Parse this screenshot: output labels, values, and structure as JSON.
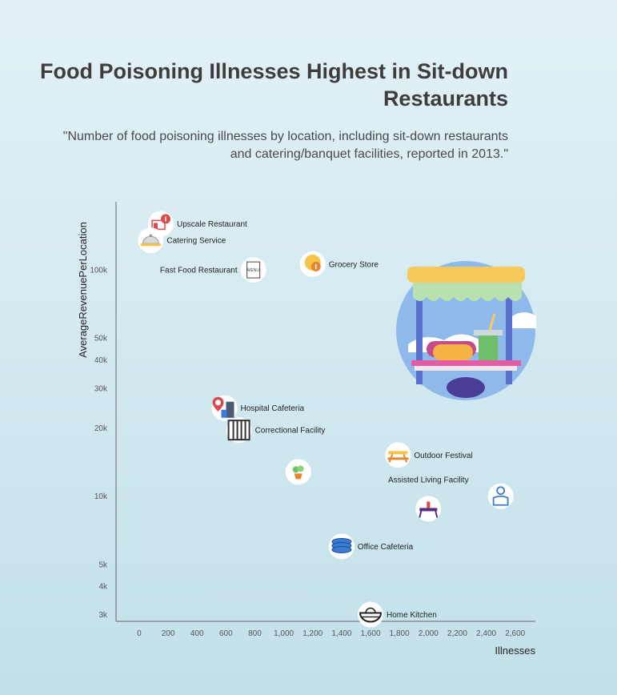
{
  "title": "Food Poisoning Illnesses Highest in Sit-down Restaurants",
  "subtitle": "\"Number of food poisoning illnesses by location, including sit-down restaurants and catering/banquet facilities, reported in 2013.\"",
  "chart_data": {
    "type": "scatter",
    "xlabel": "Illnesses",
    "ylabel": "AverageRevenuePerLocation",
    "xlim": [
      -160,
      2740
    ],
    "ylim": [
      2800,
      200000
    ],
    "yscale": "log",
    "grid": false,
    "x_ticks": [
      0,
      200,
      400,
      600,
      800,
      1000,
      1200,
      1400,
      1600,
      1800,
      2000,
      2200,
      2400,
      2600
    ],
    "x_tick_labels": [
      "0",
      "200",
      "400",
      "600",
      "800",
      "1,000",
      "1,200",
      "1,400",
      "1,600",
      "1,800",
      "2,000",
      "2,200",
      "2,400",
      "2,600"
    ],
    "y_ticks": [
      3000,
      4000,
      5000,
      10000,
      20000,
      30000,
      40000,
      50000,
      100000
    ],
    "y_tick_labels": [
      "3k",
      "4k",
      "5k",
      "10k",
      "20k",
      "30k",
      "40k",
      "50k",
      "100k"
    ],
    "points": [
      {
        "label": "Upscale Restaurant",
        "x": 150,
        "y": 160000,
        "icon": "restaurant-icon",
        "label_side": "right"
      },
      {
        "label": "Catering Service",
        "x": 80,
        "y": 135000,
        "icon": "serving-cloche-icon",
        "label_side": "right"
      },
      {
        "label": "Fast Food Restaurant",
        "x": 790,
        "y": 100000,
        "icon": "menu-icon",
        "label_side": "left"
      },
      {
        "label": "Grocery Store",
        "x": 1200,
        "y": 106000,
        "icon": "grocery-pin-icon",
        "label_side": "right"
      },
      {
        "label": "Hospital Cafeteria",
        "x": 590,
        "y": 24500,
        "icon": "hospital-icon",
        "label_side": "right"
      },
      {
        "label": "Correctional Facility",
        "x": 690,
        "y": 19600,
        "icon": "prison-bars-icon",
        "label_side": "right"
      },
      {
        "label": "",
        "x": 1100,
        "y": 12800,
        "icon": "potted-plant-icon",
        "label_side": "none"
      },
      {
        "label": "Outdoor Festival",
        "x": 1790,
        "y": 15200,
        "icon": "picnic-table-icon",
        "label_side": "right"
      },
      {
        "label": "Assisted Living Facility",
        "x": 2000,
        "y": 8800,
        "icon": "dining-table-icon",
        "label_side": "above"
      },
      {
        "label": "",
        "x": 2500,
        "y": 10000,
        "icon": "person-icon",
        "label_side": "none"
      },
      {
        "label": "Office Cafeteria",
        "x": 1400,
        "y": 6000,
        "icon": "stacked-plates-icon",
        "label_side": "right"
      },
      {
        "label": "Home Kitchen",
        "x": 1600,
        "y": 3000,
        "icon": "bowl-icon",
        "label_side": "right"
      }
    ],
    "colors": {
      "axis": "#666666",
      "marker_bg": "#ffffff",
      "accent_red": "#d94b4b",
      "accent_blue": "#3a7bd5",
      "accent_yellow": "#f5c54a",
      "accent_purple": "#5a2d82"
    }
  },
  "decoration": {
    "icon": "food-stand-icon"
  }
}
